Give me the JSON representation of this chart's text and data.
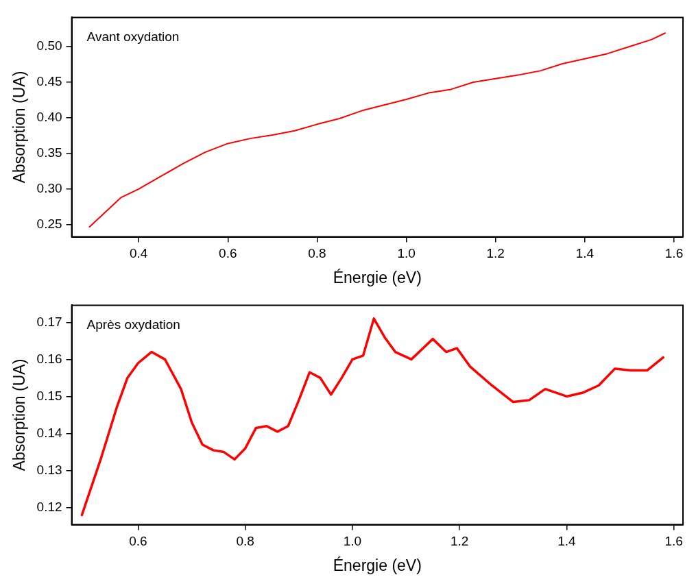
{
  "chart_data": [
    {
      "type": "line",
      "xlabel": "Énergie (eV)",
      "ylabel": "Absorption (UA)",
      "annotations": [
        "Avant oxydation"
      ],
      "grid": false,
      "legend": false,
      "marker": "none",
      "line_style": "solid",
      "xlim": [
        0.25,
        1.62
      ],
      "ylim": [
        0.233,
        0.541
      ],
      "xticks": [
        0.4,
        0.6,
        0.8,
        {
          "value": 1.0,
          "label": "1.0"
        },
        1.2,
        1.4,
        1.6
      ],
      "yticks": [
        0.25,
        {
          "value": 0.3,
          "label": "0.30"
        },
        0.35,
        {
          "value": 0.4,
          "label": "0.40"
        },
        0.45,
        {
          "value": 0.5,
          "label": "0.50"
        }
      ],
      "series": [
        {
          "color": "#ff0000",
          "x": [
            0.29,
            0.36,
            0.4,
            0.45,
            0.5,
            0.55,
            0.6,
            0.65,
            0.7,
            0.75,
            0.8,
            0.85,
            0.9,
            0.95,
            1.0,
            1.05,
            1.1,
            1.15,
            1.2,
            1.25,
            1.3,
            1.35,
            1.4,
            1.45,
            1.5,
            1.55,
            1.58
          ],
          "values": [
            0.247,
            0.288,
            0.3,
            0.318,
            0.336,
            0.352,
            0.364,
            0.371,
            0.376,
            0.382,
            0.391,
            0.399,
            0.41,
            0.418,
            0.426,
            0.435,
            0.44,
            0.45,
            0.455,
            0.46,
            0.466,
            0.476,
            0.483,
            0.49,
            0.5,
            0.51,
            0.519
          ]
        }
      ]
    },
    {
      "type": "line",
      "xlabel": "Énergie (eV)",
      "ylabel": "Absorption (UA)",
      "annotations": [
        "Après oxydation"
      ],
      "grid": false,
      "legend": false,
      "marker": "none",
      "line_style": "solid",
      "xlim": [
        0.476,
        1.617
      ],
      "ylim": [
        0.1154,
        0.1746
      ],
      "xticks": [
        0.6,
        0.8,
        {
          "value": 1.0,
          "label": "1.0"
        },
        1.2,
        1.4,
        1.6
      ],
      "yticks": [
        0.12,
        0.13,
        0.14,
        0.15,
        0.16,
        0.17
      ],
      "series": [
        {
          "color": "#ff0000",
          "x": [
            0.495,
            0.53,
            0.56,
            0.58,
            0.6,
            0.625,
            0.65,
            0.68,
            0.7,
            0.72,
            0.74,
            0.76,
            0.78,
            0.8,
            0.82,
            0.84,
            0.86,
            0.88,
            0.9,
            0.92,
            0.94,
            0.96,
            0.98,
            1.0,
            1.02,
            1.04,
            1.06,
            1.08,
            1.11,
            1.15,
            1.175,
            1.195,
            1.22,
            1.26,
            1.3,
            1.33,
            1.36,
            1.4,
            1.43,
            1.46,
            1.49,
            1.52,
            1.55,
            1.58
          ],
          "values": [
            0.118,
            0.133,
            0.147,
            0.155,
            0.159,
            0.162,
            0.16,
            0.152,
            0.143,
            0.137,
            0.1355,
            0.135,
            0.133,
            0.136,
            0.1415,
            0.142,
            0.1405,
            0.142,
            0.149,
            0.1565,
            0.155,
            0.1505,
            0.155,
            0.16,
            0.161,
            0.171,
            0.166,
            0.162,
            0.16,
            0.1655,
            0.162,
            0.163,
            0.158,
            0.153,
            0.1485,
            0.149,
            0.152,
            0.15,
            0.151,
            0.153,
            0.1575,
            0.157,
            0.157,
            0.1605
          ]
        }
      ]
    }
  ]
}
